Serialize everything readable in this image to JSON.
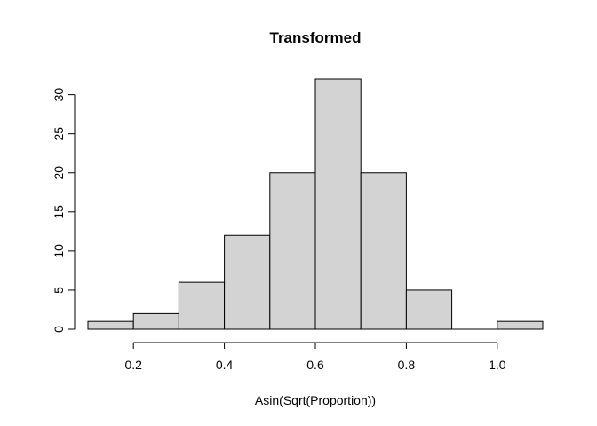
{
  "chart_data": {
    "type": "bar",
    "title": "Transformed",
    "xlabel": "Asin(Sqrt(Proportion))",
    "ylabel": "",
    "bins": [
      {
        "x0": 0.1,
        "x1": 0.2,
        "count": 1
      },
      {
        "x0": 0.2,
        "x1": 0.3,
        "count": 2
      },
      {
        "x0": 0.3,
        "x1": 0.4,
        "count": 6
      },
      {
        "x0": 0.4,
        "x1": 0.5,
        "count": 12
      },
      {
        "x0": 0.5,
        "x1": 0.6,
        "count": 20
      },
      {
        "x0": 0.6,
        "x1": 0.7,
        "count": 32
      },
      {
        "x0": 0.7,
        "x1": 0.8,
        "count": 20
      },
      {
        "x0": 0.8,
        "x1": 0.9,
        "count": 5
      },
      {
        "x0": 0.9,
        "x1": 1.0,
        "count": 0
      },
      {
        "x0": 1.0,
        "x1": 1.1,
        "count": 1
      }
    ],
    "xlim": [
      0.1,
      1.1
    ],
    "ylim": [
      0,
      32
    ],
    "x_ticks": [
      0.2,
      0.4,
      0.6,
      0.8,
      1.0
    ],
    "x_tick_labels": [
      "0.2",
      "0.4",
      "0.6",
      "0.8",
      "1.0"
    ],
    "y_ticks": [
      0,
      5,
      10,
      15,
      20,
      25,
      30
    ],
    "y_tick_labels": [
      "0",
      "5",
      "10",
      "15",
      "20",
      "25",
      "30"
    ],
    "grid": false,
    "bar_color": "#d3d3d3",
    "edge_color": "#000000"
  }
}
